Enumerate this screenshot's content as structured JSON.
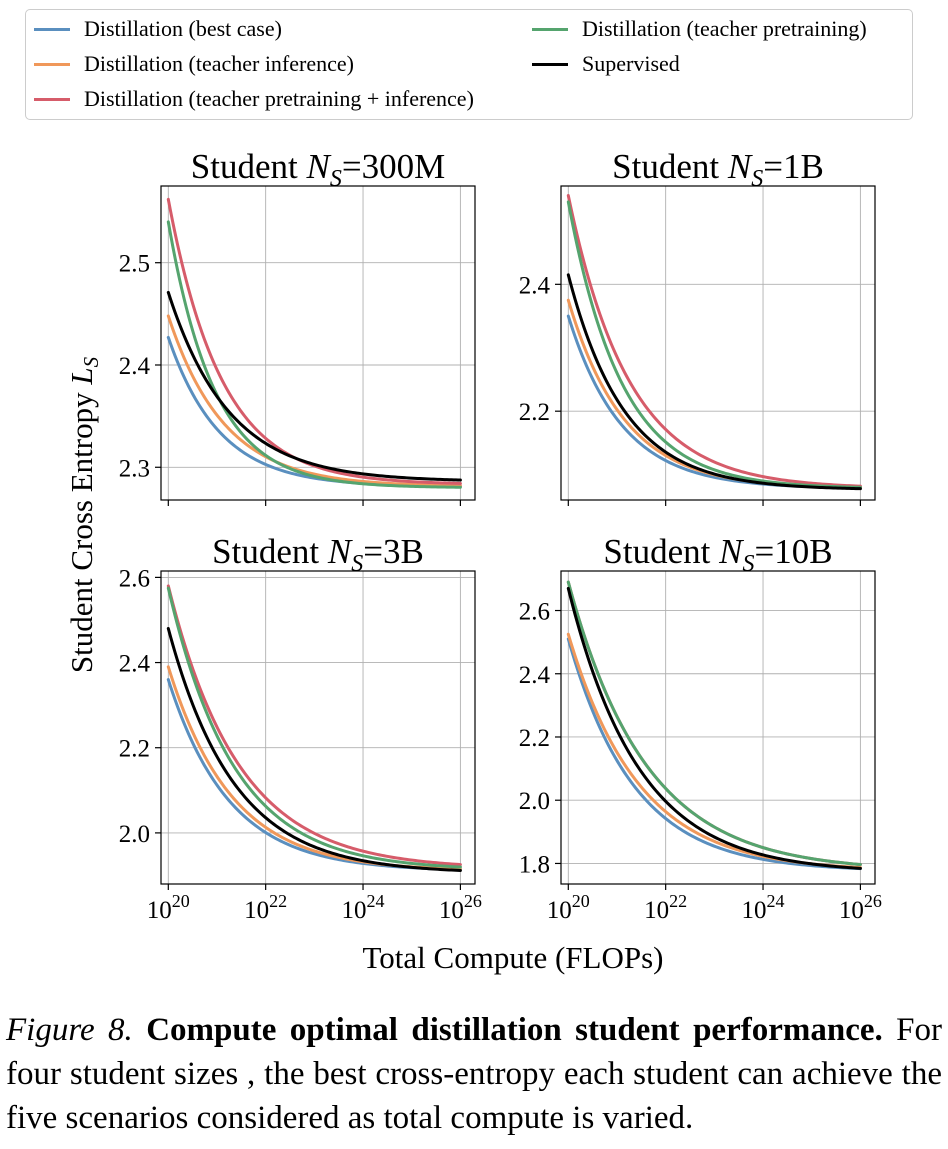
{
  "legend": [
    {
      "name": "Distillation (best case)",
      "color": "#5a8fbf"
    },
    {
      "name": "Distillation (teacher inference)",
      "color": "#f0985a"
    },
    {
      "name": "Distillation (teacher pretraining + inference)",
      "color": "#d65c6a"
    },
    {
      "name": "Distillation (teacher pretraining)",
      "color": "#55a46e"
    },
    {
      "name": "Supervised",
      "color": "#000000"
    }
  ],
  "figure": {
    "ylabel_prefix": "Student Cross Entropy ",
    "ylabel_var": "L",
    "ylabel_sub": "S",
    "xlabel": "Total Compute (FLOPs)"
  },
  "caption": {
    "label": "Figure 8.",
    "title": "Compute optimal distillation student performance.",
    "body": "For four student sizes , the best cross-entropy each student can achieve the five scenarios considered as total compute is varied."
  },
  "chart_data": [
    {
      "type": "line",
      "title_prefix": "Student ",
      "title_var": "N",
      "title_sub": "S",
      "title_value": "=300M",
      "x_scale": "log",
      "xlim_exp": [
        19.85,
        26.3
      ],
      "x_tick_exponents": [
        20,
        22,
        24,
        26
      ],
      "x_tick_labels_shown": false,
      "ylim": [
        2.268,
        2.575
      ],
      "y_ticks": [
        2.3,
        2.4,
        2.5
      ],
      "grid": true,
      "series": [
        {
          "name": "Distillation (best case)",
          "start": 2.427,
          "asymptote": 2.281,
          "tau": 1.05
        },
        {
          "name": "Distillation (teacher inference)",
          "start": 2.448,
          "asymptote": 2.281,
          "tau": 1.15
        },
        {
          "name": "Distillation (teacher pretraining + inference)",
          "start": 2.562,
          "asymptote": 2.283,
          "tau": 1.1
        },
        {
          "name": "Distillation (teacher pretraining)",
          "start": 2.54,
          "asymptote": 2.28,
          "tau": 0.95
        },
        {
          "name": "Supervised",
          "start": 2.471,
          "asymptote": 2.286,
          "tau": 1.25
        }
      ]
    },
    {
      "type": "line",
      "title_prefix": "Student ",
      "title_var": "N",
      "title_sub": "S",
      "title_value": "=1B",
      "x_scale": "log",
      "xlim_exp": [
        19.85,
        26.3
      ],
      "x_tick_exponents": [
        20,
        22,
        24,
        26
      ],
      "x_tick_labels_shown": false,
      "ylim": [
        2.06,
        2.555
      ],
      "y_ticks": [
        2.2,
        2.4
      ],
      "grid": true,
      "series": [
        {
          "name": "Distillation (best case)",
          "start": 2.35,
          "asymptote": 2.078,
          "tau": 1.1
        },
        {
          "name": "Distillation (teacher inference)",
          "start": 2.375,
          "asymptote": 2.078,
          "tau": 1.15
        },
        {
          "name": "Distillation (teacher pretraining + inference)",
          "start": 2.54,
          "asymptote": 2.078,
          "tau": 1.25
        },
        {
          "name": "Distillation (teacher pretraining)",
          "start": 2.53,
          "asymptote": 2.078,
          "tau": 1.1
        },
        {
          "name": "Supervised",
          "start": 2.415,
          "asymptote": 2.076,
          "tau": 1.15
        }
      ]
    },
    {
      "type": "line",
      "title_prefix": "Student ",
      "title_var": "N",
      "title_sub": "S",
      "title_value": "=3B",
      "x_scale": "log",
      "xlim_exp": [
        19.85,
        26.3
      ],
      "x_tick_exponents": [
        20,
        22,
        24,
        26
      ],
      "x_tick_labels_shown": true,
      "ylim": [
        1.88,
        2.615
      ],
      "y_ticks": [
        2.0,
        2.2,
        2.4,
        2.6
      ],
      "grid": true,
      "series": [
        {
          "name": "Distillation (best case)",
          "start": 2.36,
          "asymptote": 1.91,
          "tau": 1.25
        },
        {
          "name": "Distillation (teacher inference)",
          "start": 2.39,
          "asymptote": 1.91,
          "tau": 1.3
        },
        {
          "name": "Distillation (teacher pretraining + inference)",
          "start": 2.58,
          "asymptote": 1.915,
          "tau": 1.45
        },
        {
          "name": "Distillation (teacher pretraining)",
          "start": 2.575,
          "asymptote": 1.912,
          "tau": 1.35
        },
        {
          "name": "Supervised",
          "start": 2.48,
          "asymptote": 1.905,
          "tau": 1.35
        }
      ]
    },
    {
      "type": "line",
      "title_prefix": "Student ",
      "title_var": "N",
      "title_sub": "S",
      "title_value": "=10B",
      "x_scale": "log",
      "xlim_exp": [
        19.85,
        26.3
      ],
      "x_tick_exponents": [
        20,
        22,
        24,
        26
      ],
      "x_tick_labels_shown": true,
      "ylim": [
        1.735,
        2.725
      ],
      "y_ticks": [
        1.8,
        2.0,
        2.2,
        2.4,
        2.6
      ],
      "grid": true,
      "series": [
        {
          "name": "Distillation (best case)",
          "start": 2.51,
          "asymptote": 1.775,
          "tau": 1.35
        },
        {
          "name": "Distillation (teacher inference)",
          "start": 2.525,
          "asymptote": 1.775,
          "tau": 1.45
        },
        {
          "name": "Distillation (teacher pretraining + inference)",
          "start": 2.69,
          "asymptote": 1.775,
          "tau": 1.6
        },
        {
          "name": "Distillation (teacher pretraining)",
          "start": 2.69,
          "asymptote": 1.775,
          "tau": 1.6
        },
        {
          "name": "Supervised",
          "start": 2.67,
          "asymptote": 1.77,
          "tau": 1.45
        }
      ]
    }
  ]
}
